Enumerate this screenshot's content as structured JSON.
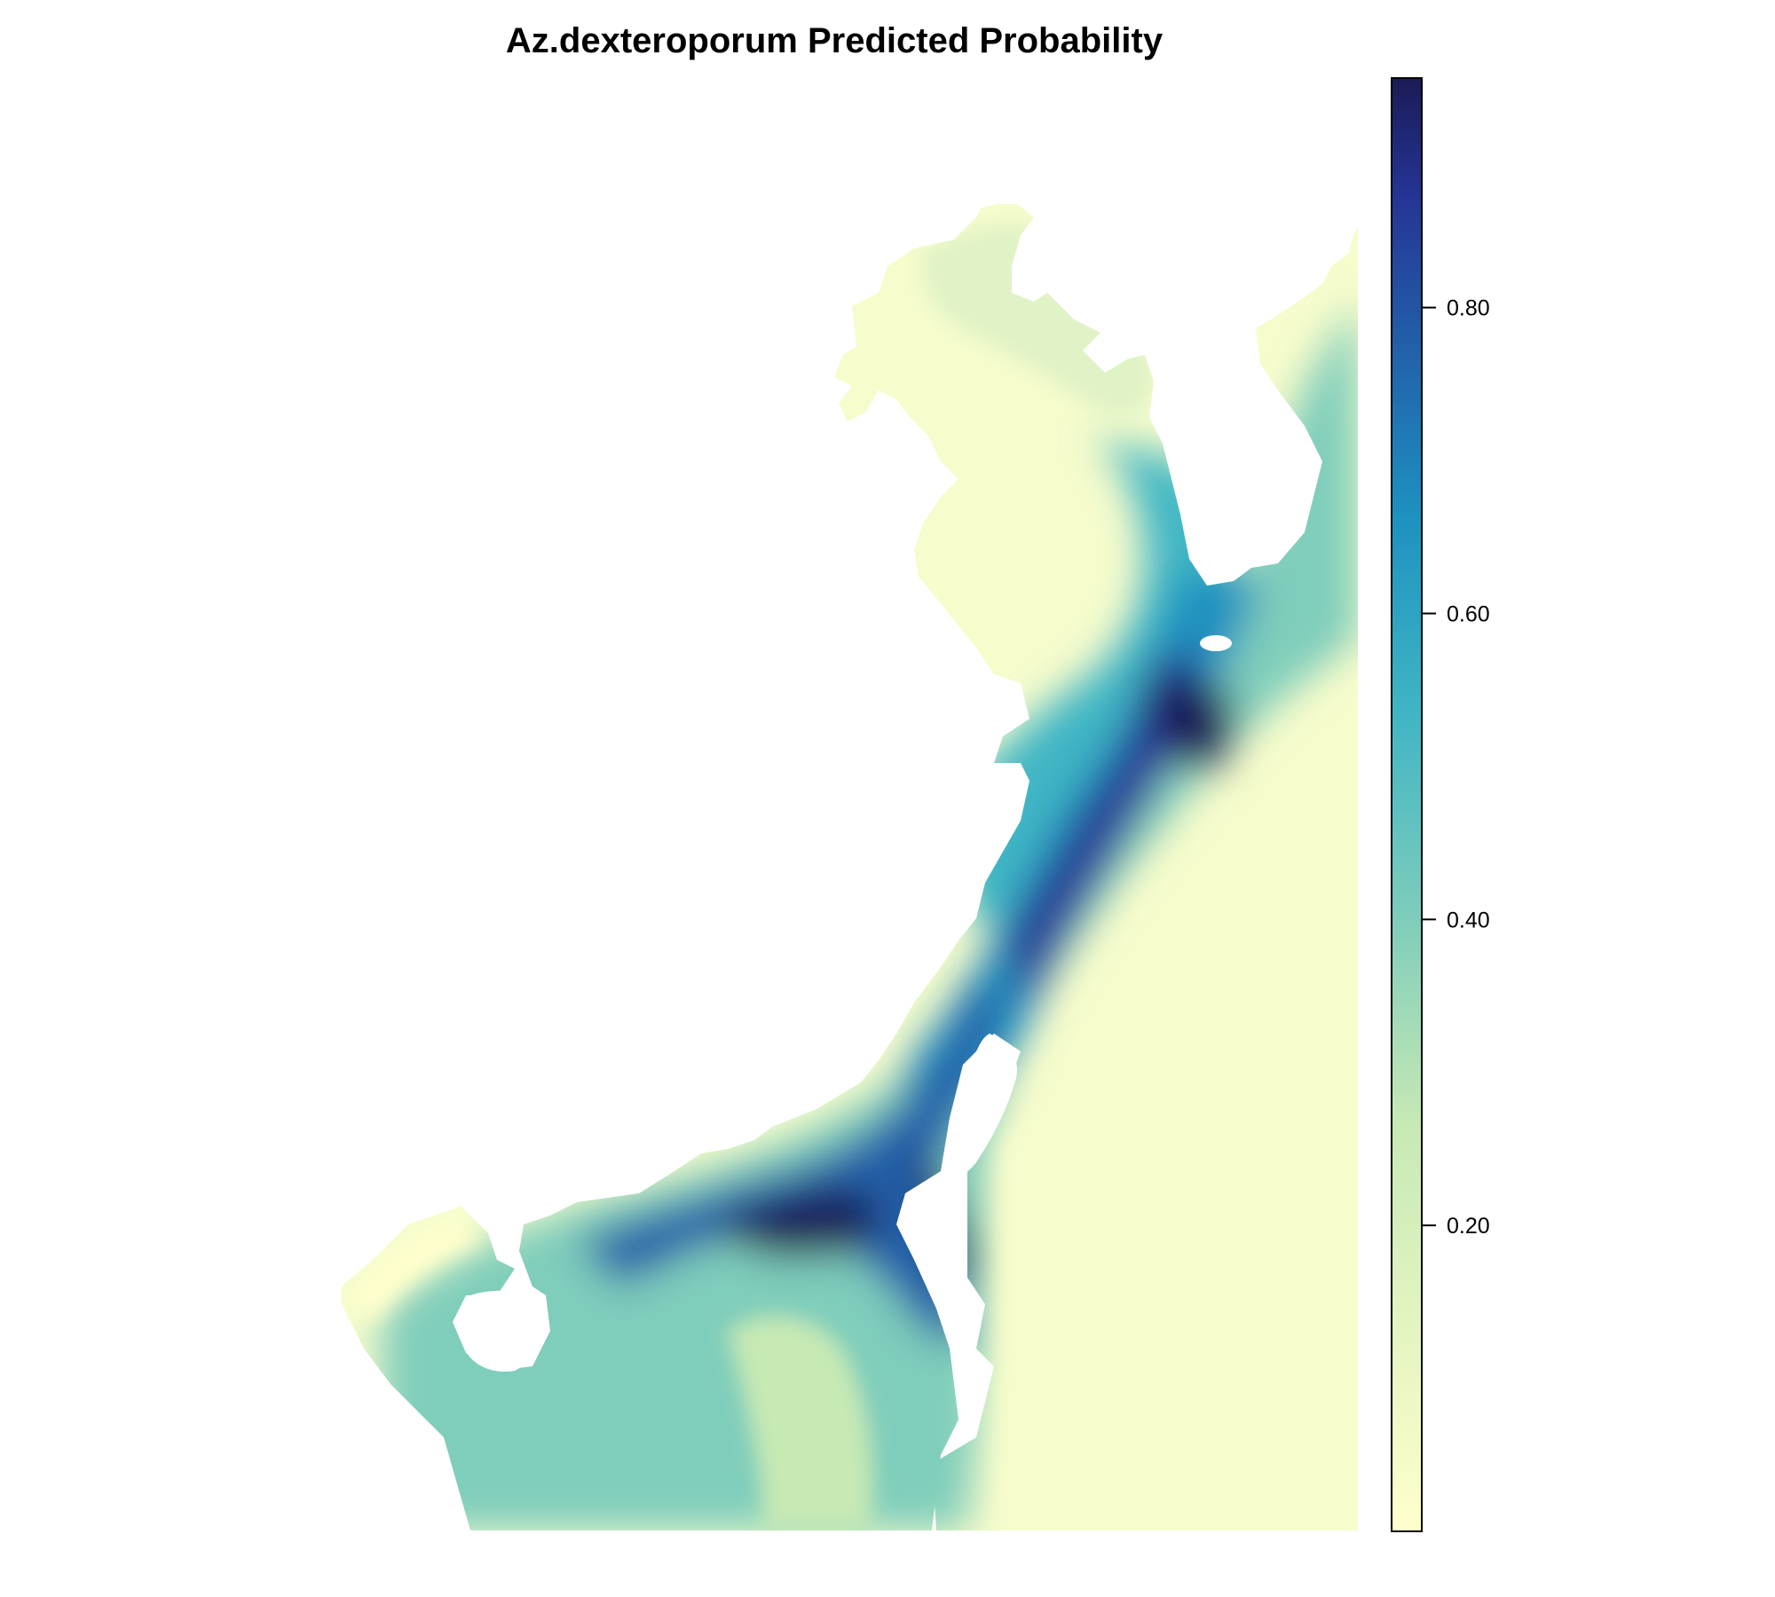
{
  "title": "Az.dexteroporum Predicted Probability",
  "colors": {
    "ramp": [
      "#ffffcc",
      "#c7e9b4",
      "#7fcdbb",
      "#41b6c4",
      "#1d91c0",
      "#225ea8",
      "#253494",
      "#1b1b55"
    ],
    "background": "#ffffff",
    "frame": "#000000"
  },
  "legend": {
    "position": "right",
    "min": 0.0,
    "max": 0.95,
    "ticks": [
      {
        "value": 0.2,
        "label": "0.20"
      },
      {
        "value": 0.4,
        "label": "0.40"
      },
      {
        "value": 0.6,
        "label": "0.60"
      },
      {
        "value": 0.8,
        "label": "0.80"
      }
    ]
  }
}
